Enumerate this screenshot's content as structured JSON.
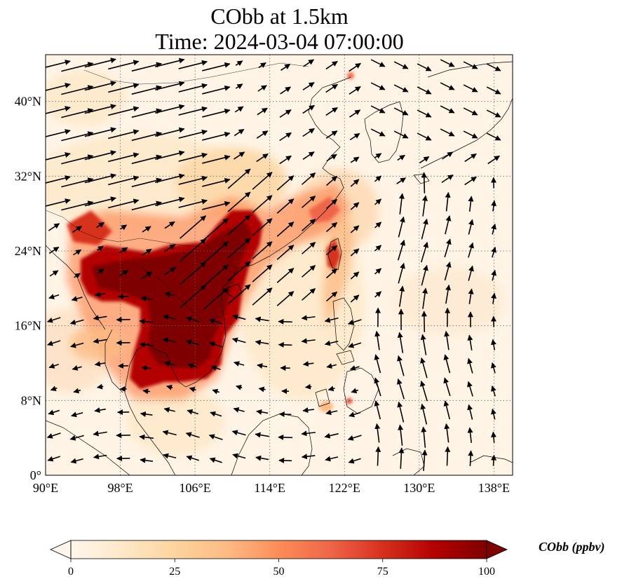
{
  "title": {
    "line1": "CObb at 1.5km",
    "line2": "Time: 2024-03-04 07:00:00"
  },
  "map": {
    "lon_range": [
      90,
      140
    ],
    "lat_range": [
      0,
      45
    ],
    "lon_ticks": [
      "90°E",
      "98°E",
      "106°E",
      "114°E",
      "122°E",
      "130°E",
      "138°E"
    ],
    "lat_ticks": [
      "0°",
      "8°N",
      "16°N",
      "24°N",
      "32°N",
      "40°N"
    ],
    "field": "CObb",
    "colormap": "OrRd",
    "gridlines": "dotted"
  },
  "colorbar": {
    "label": "CObb (ppbv)",
    "ticks": [
      "0",
      "25",
      "50",
      "75",
      "100"
    ],
    "range": [
      0,
      100
    ],
    "colors": [
      "#fff7ec",
      "#fee8c8",
      "#fdd49e",
      "#fdbb84",
      "#fc8d59",
      "#ef6548",
      "#d7301f",
      "#b30000",
      "#7f0000"
    ]
  }
}
